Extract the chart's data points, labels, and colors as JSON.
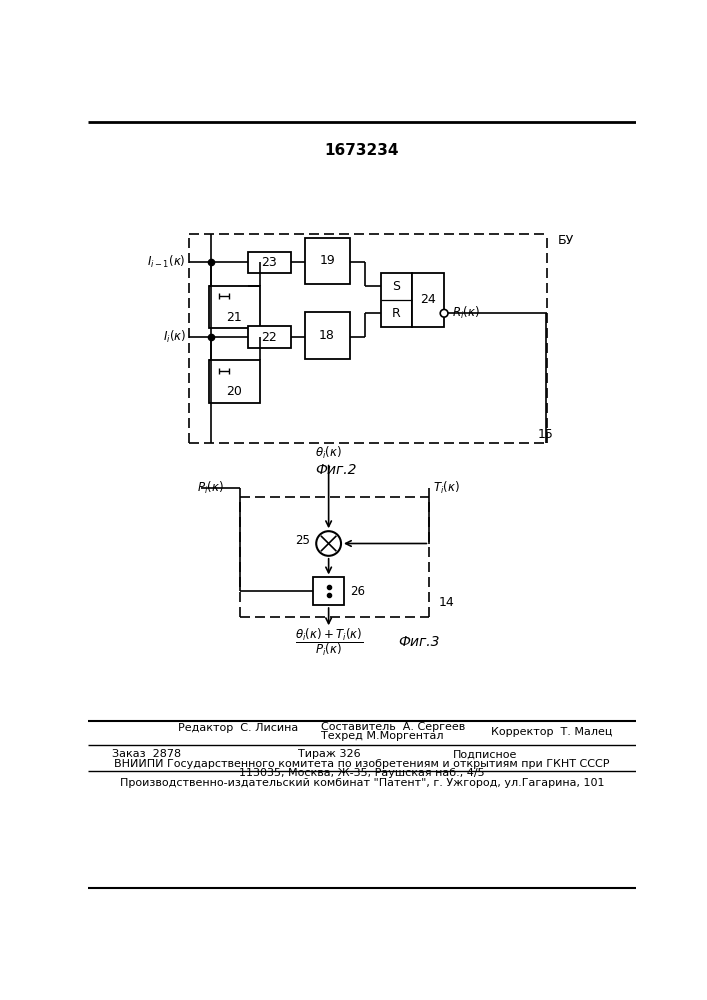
{
  "patent_number": "1673234",
  "fig2_label": "Фиг.2",
  "fig3_label": "Фиг.3",
  "editor_line": "Редактор  С. Лисина",
  "composer_line": "Составитель  А. Сергеев",
  "techred_line": "Техред М.Моргентал",
  "corrector_line": "Корректор  Т. Малец",
  "order_line": "Заказ  2878",
  "tirazh_line": "Тираж 326",
  "podpis_line": "Подписное",
  "vniiipi_line": "ВНИИПИ Государственного комитета по изобретениям и открытиям при ГКНТ СССР",
  "address_line": "113035, Москва, Ж-35, Раушская наб., 4/5",
  "patent_combine_line": "Производственно-издательский комбинат \"Патент\", г. Ужгород, ул.Гагарина, 101"
}
